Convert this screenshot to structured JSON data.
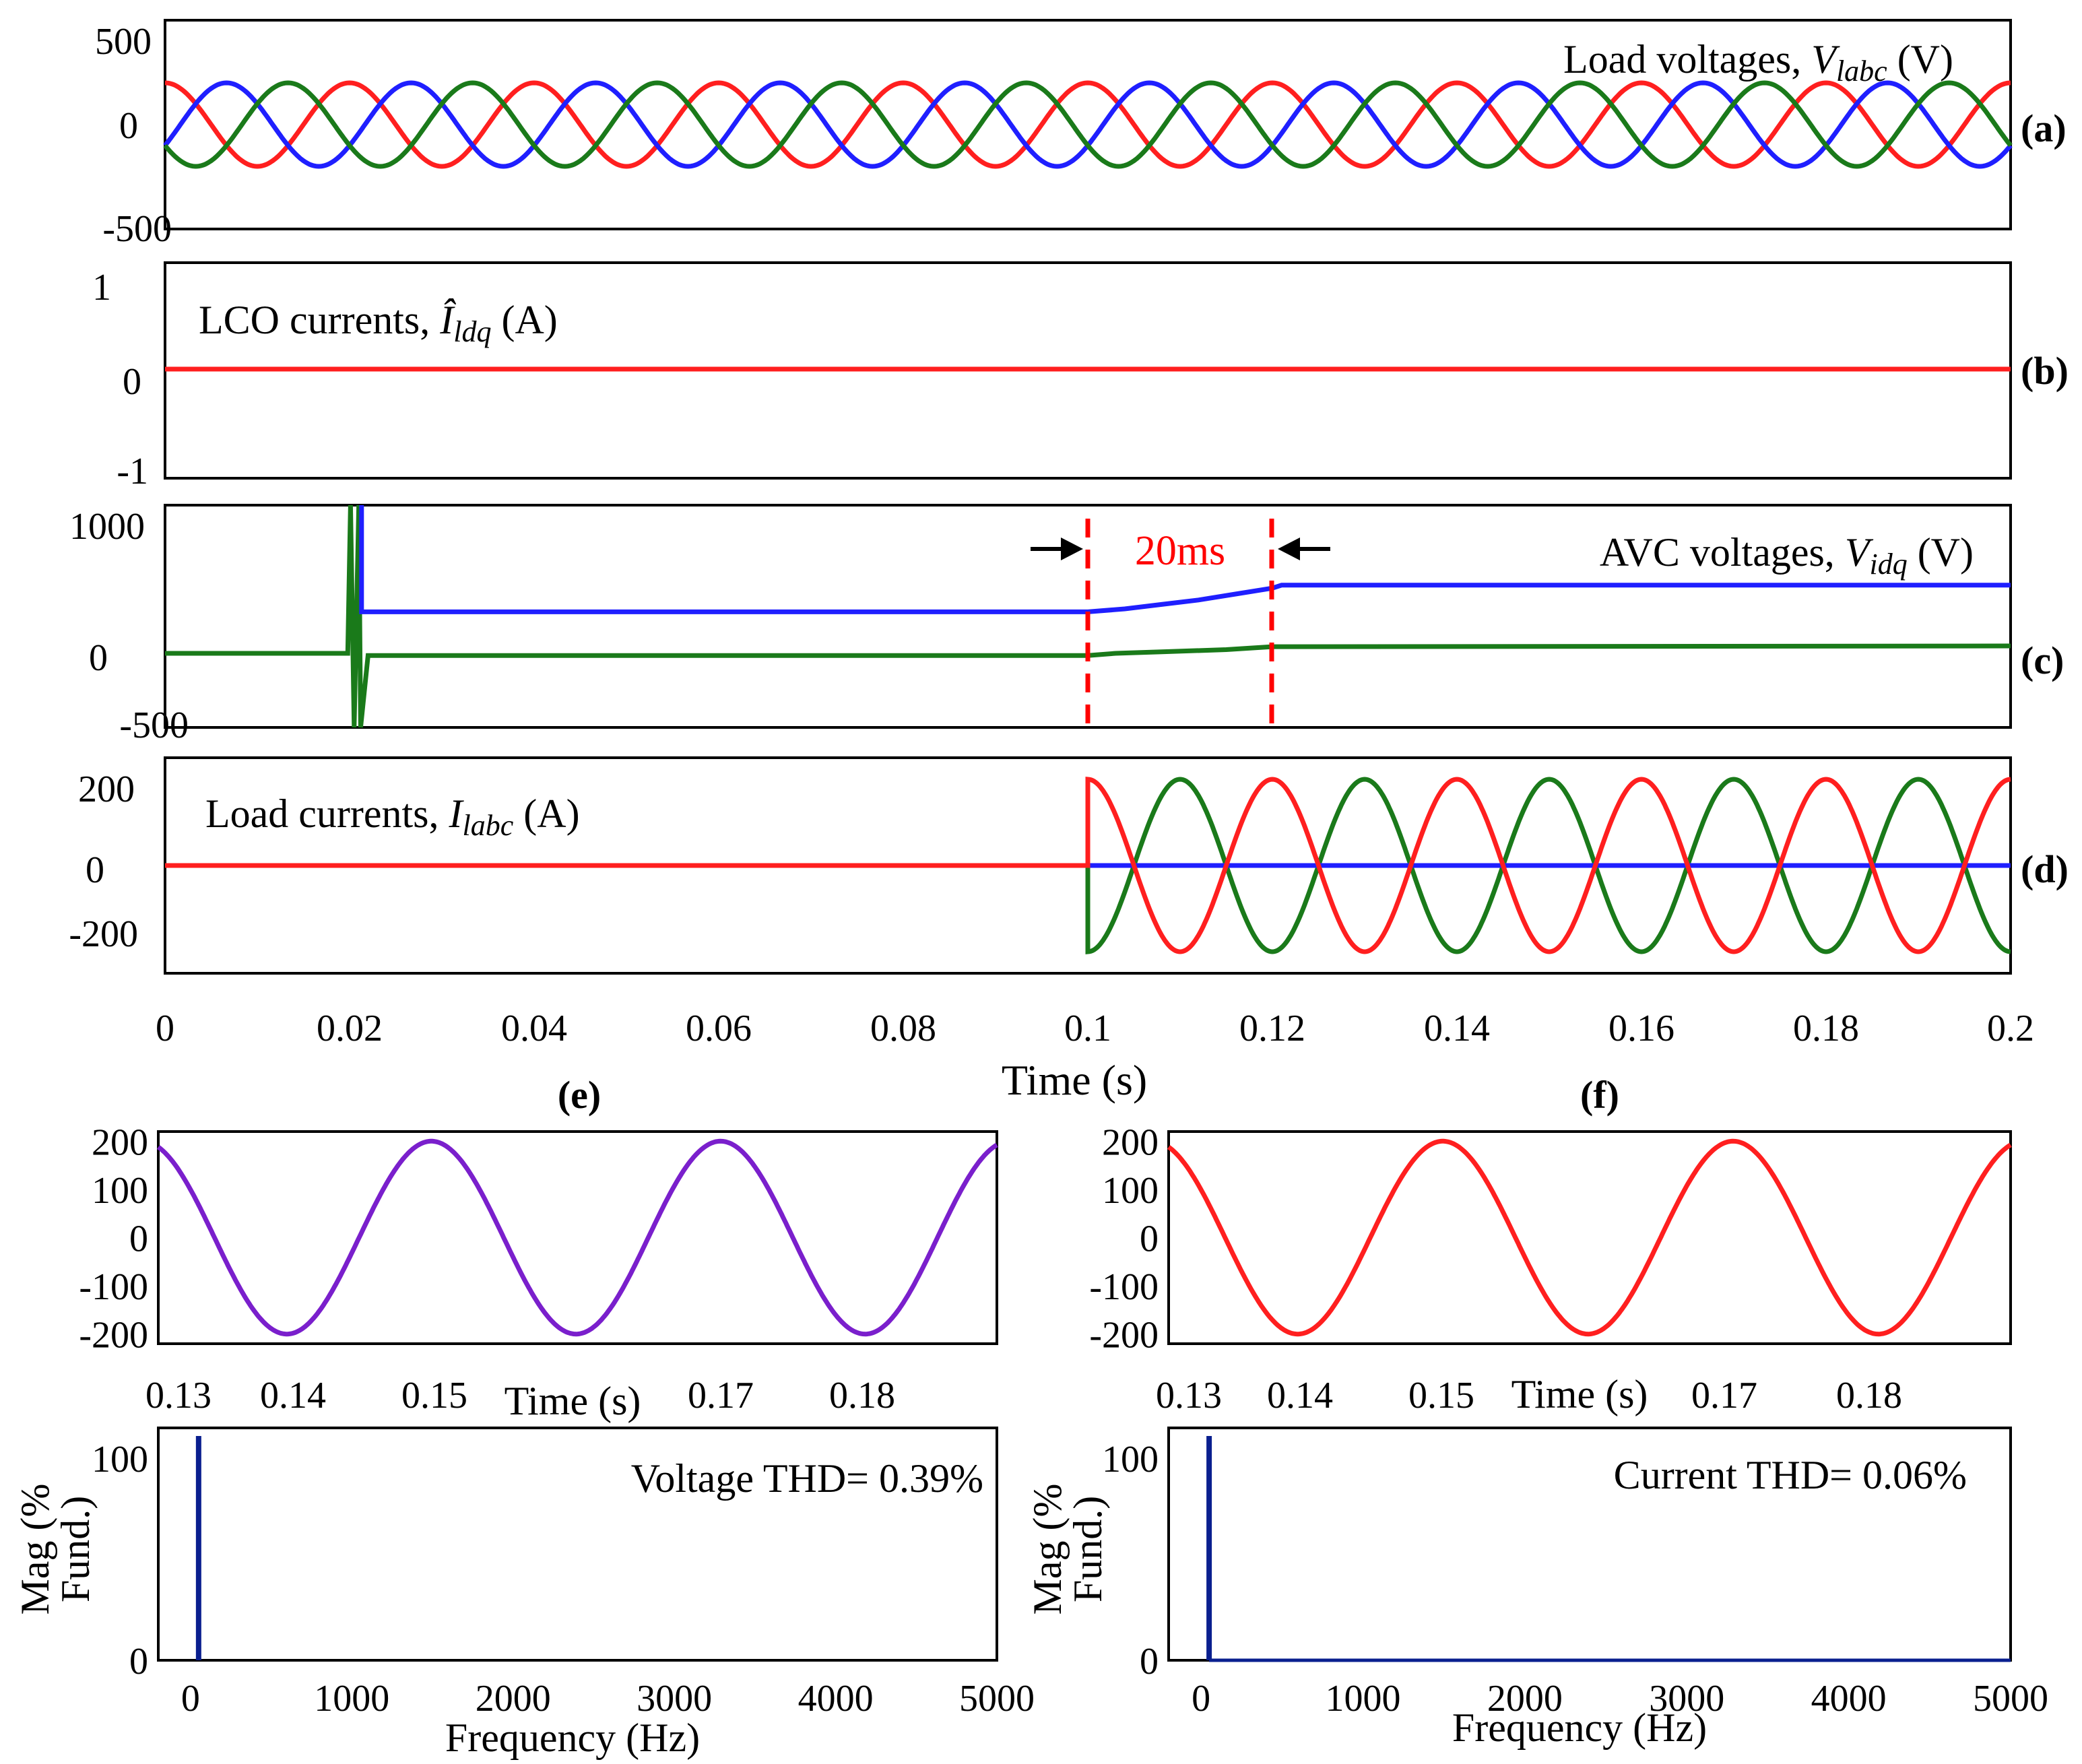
{
  "colors": {
    "phase_a": "#ff1f1f",
    "phase_b": "#1f1fff",
    "phase_c": "#1a7a1a",
    "voltage_thd_wave": "#7a1fcc",
    "current_thd_wave": "#ff1f1f",
    "spectrum_bar": "#0a1f8f",
    "annotation_red": "#ff0000"
  },
  "shared_x": {
    "xlabel": "Time (s)",
    "ticks": [
      "0",
      "0.02",
      "0.04",
      "0.06",
      "0.08",
      "0.1",
      "0.12",
      "0.14",
      "0.16",
      "0.18",
      "0.2"
    ]
  },
  "panel_tags": {
    "a": "(a)",
    "b": "(b)",
    "c": "(c)",
    "d": "(d)",
    "e": "(e)",
    "f": "(f)"
  },
  "annotations": {
    "a_title": "Load voltages, ",
    "a_sym": "V",
    "a_sub": "labc",
    "a_unit": " (V)",
    "b_title": "LCO currents, ",
    "b_sym": "Î",
    "b_sub": "ldq",
    "b_unit": " (A)",
    "c_title": "AVC voltages, ",
    "c_sym": "V",
    "c_sub": "idq",
    "c_unit": " (V)",
    "c_interval": "20ms",
    "d_title": "Load currents, ",
    "d_sym": "I",
    "d_sub": "labc",
    "d_unit": " (A)",
    "e_thd": "Voltage THD= 0.39%",
    "f_thd": "Current THD= 0.06%"
  },
  "chart_data": [
    {
      "id": "a",
      "type": "line",
      "ylim": [
        -500,
        500
      ],
      "yticks": [
        "500",
        "0",
        "-500"
      ],
      "xlim": [
        0,
        0.2
      ],
      "series": [
        {
          "phase": "a",
          "amplitude": 200,
          "frequency_hz": 50,
          "phase_deg": 90
        },
        {
          "phase": "b",
          "amplitude": 200,
          "frequency_hz": 50,
          "phase_deg": -30
        },
        {
          "phase": "c",
          "amplitude": 200,
          "frequency_hz": 50,
          "phase_deg": 210
        }
      ]
    },
    {
      "id": "b",
      "type": "line",
      "ylim": [
        -1,
        1
      ],
      "yticks": [
        "1",
        "0",
        "-1"
      ],
      "xlim": [
        0,
        0.2
      ],
      "series": [
        {
          "x": [
            0,
            0.2
          ],
          "y": [
            0,
            0
          ]
        }
      ]
    },
    {
      "id": "c",
      "type": "line",
      "ylim": [
        -500,
        1000
      ],
      "yticks": [
        "1000",
        "0",
        "-500"
      ],
      "xlim": [
        0,
        0.2
      ],
      "series": [
        {
          "color": "blue",
          "x": [
            0.0213,
            0.0213,
            0.0218,
            0.1,
            0.104,
            0.108,
            0.112,
            0.116,
            0.12,
            0.121,
            0.2
          ],
          "y": [
            1000,
            280,
            280,
            280,
            300,
            330,
            360,
            400,
            440,
            460,
            460
          ]
        },
        {
          "color": "green",
          "x": [
            0,
            0.0198,
            0.0201,
            0.0205,
            0.021,
            0.0212,
            0.022,
            0.1,
            0.103,
            0.108,
            0.115,
            0.12,
            0.2
          ],
          "y": [
            0,
            0,
            1000,
            -500,
            1000,
            -500,
            -15,
            -15,
            0,
            10,
            25,
            45,
            50
          ]
        }
      ]
    },
    {
      "id": "d",
      "type": "line",
      "ylim": [
        -250,
        250
      ],
      "yticks": [
        "200",
        "0",
        "-200"
      ],
      "xlim": [
        0,
        0.2
      ],
      "step_time": 0.1,
      "series": [
        {
          "phase": "a",
          "amplitude": 200,
          "frequency_hz": 50,
          "phase_deg": 90,
          "before_step": 0
        },
        {
          "phase": "b",
          "amplitude": 0,
          "frequency_hz": 50,
          "phase_deg": 0,
          "before_step": 0
        },
        {
          "phase": "c",
          "amplitude": 200,
          "frequency_hz": 50,
          "phase_deg": -90,
          "before_step": 0
        }
      ]
    },
    {
      "id": "e_wave",
      "type": "line",
      "ylim": [
        -220,
        220
      ],
      "yticks": [
        "200",
        "100",
        "0",
        "-100",
        "-200"
      ],
      "xlim": [
        0.13,
        0.188
      ],
      "xticks": [
        "0.13",
        "0.14",
        "0.15",
        "0.17",
        "0.18"
      ],
      "xlabel": "Time (s)",
      "series": [
        {
          "amplitude": 200,
          "frequency_hz": 50,
          "phase_deg": 90
        }
      ]
    },
    {
      "id": "e_spectrum",
      "type": "bar",
      "ylim": [
        0,
        115
      ],
      "yticks": [
        "100",
        "0"
      ],
      "xlim": [
        -200,
        5000
      ],
      "xticks": [
        "0",
        "1000",
        "2000",
        "3000",
        "4000",
        "5000"
      ],
      "xlabel": "Frequency (Hz)",
      "ylabel_line1": "Mag (%",
      "ylabel_line2": "Fund.)",
      "bars": [
        {
          "x": 50,
          "y": 100
        }
      ]
    },
    {
      "id": "f_wave",
      "type": "line",
      "ylim": [
        -220,
        220
      ],
      "yticks": [
        "200",
        "100",
        "0",
        "-100",
        "-200"
      ],
      "xlim": [
        0.13,
        0.188
      ],
      "xticks": [
        "0.13",
        "0.14",
        "0.15",
        "0.17",
        "0.18"
      ],
      "xlabel": "Time (s)",
      "series": [
        {
          "amplitude": 200,
          "frequency_hz": 50,
          "phase_deg": 90
        }
      ]
    },
    {
      "id": "f_spectrum",
      "type": "bar",
      "ylim": [
        0,
        115
      ],
      "yticks": [
        "100",
        "0"
      ],
      "xlim": [
        -200,
        5000
      ],
      "xticks": [
        "0",
        "1000",
        "2000",
        "3000",
        "4000",
        "5000"
      ],
      "xlabel": "Frequency (Hz)",
      "ylabel_line1": "Mag (%",
      "ylabel_line2": "Fund.)",
      "bars": [
        {
          "x": 50,
          "y": 100
        }
      ]
    }
  ]
}
